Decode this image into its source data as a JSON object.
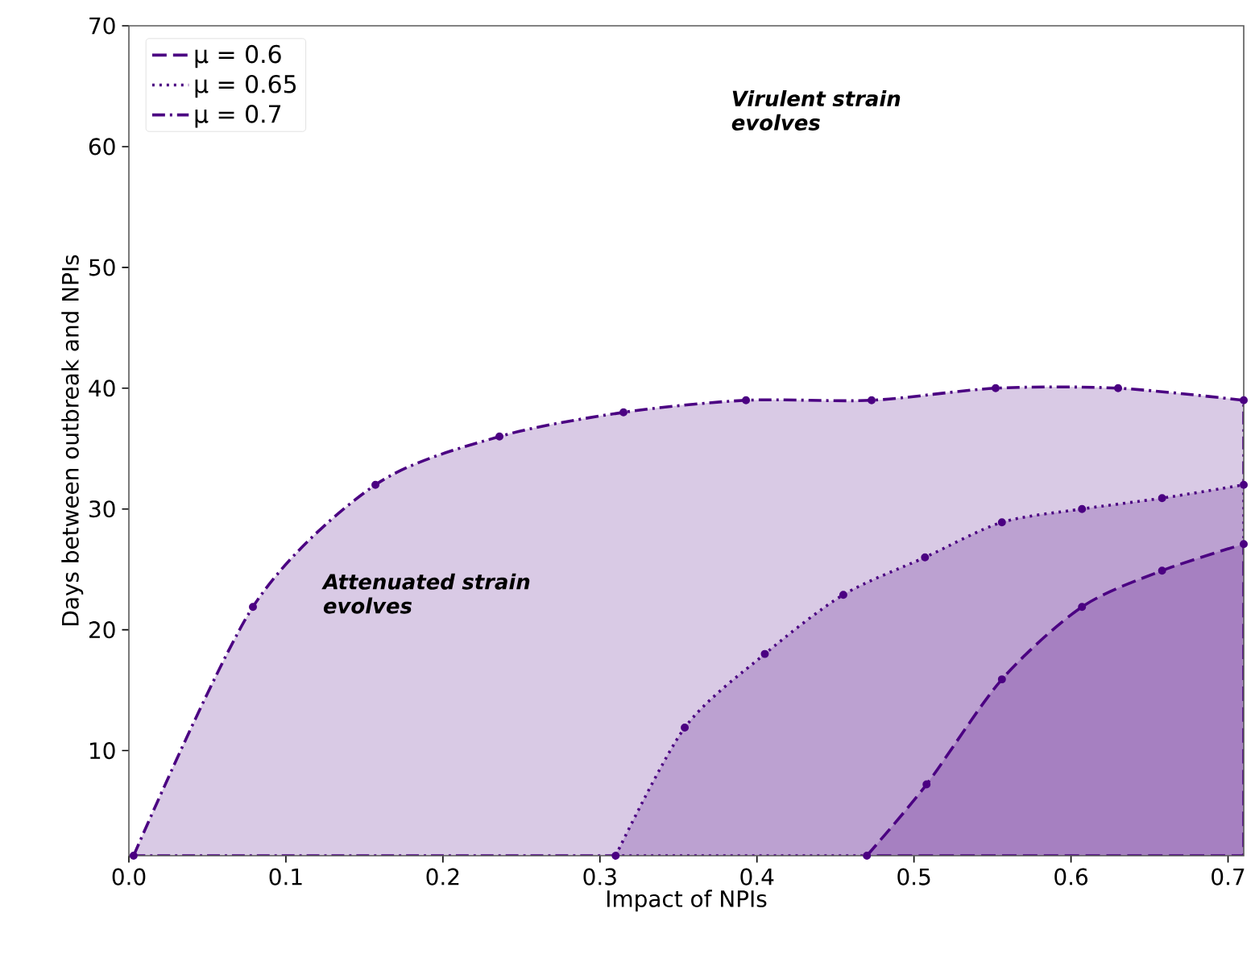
{
  "chart_data": {
    "type": "area",
    "xlabel": "Impact of NPIs",
    "ylabel": "Days between outbreak and NPIs",
    "annotations": [
      "Virulent strain evolves",
      "Attenuated strain evolves"
    ],
    "series": [
      {
        "name": "μ = 0.6",
        "color": "#a680c1",
        "line_style": "dashed",
        "x": [
          0.47,
          0.508,
          0.556,
          0.607,
          0.658,
          0.71
        ],
        "values": [
          1.3,
          7.2,
          15.9,
          21.9,
          24.9,
          27.1
        ]
      },
      {
        "name": "μ = 0.65",
        "color": "#bca1d1",
        "line_style": "dotted",
        "x": [
          0.31,
          0.354,
          0.405,
          0.455,
          0.507,
          0.556,
          0.607,
          0.658,
          0.71
        ],
        "values": [
          1.3,
          11.9,
          18,
          22.9,
          26,
          28.9,
          30,
          30.9,
          32
        ]
      },
      {
        "name": "μ = 0.7",
        "color": "#d9cae5",
        "line_style": "dashdot",
        "x": [
          0.003,
          0.079,
          0.157,
          0.236,
          0.315,
          0.393,
          0.473,
          0.552,
          0.63,
          0.71
        ],
        "values": [
          1.3,
          21.9,
          32,
          36,
          38,
          39,
          39,
          40,
          40,
          39
        ]
      }
    ],
    "xlim": [
      0,
      0.71
    ],
    "ylim": [
      1.3,
      70
    ],
    "xticks": [
      {
        "value": 0,
        "label": "0.0"
      },
      {
        "value": 0.1,
        "label": "0.1"
      },
      {
        "value": 0.2,
        "label": "0.2"
      },
      {
        "value": 0.3,
        "label": "0.3"
      },
      {
        "value": 0.4,
        "label": "0.4"
      },
      {
        "value": 0.5,
        "label": "0.5"
      },
      {
        "value": 0.6,
        "label": "0.6"
      },
      {
        "value": 0.7,
        "label": "0.7"
      }
    ],
    "yticks": [
      10,
      20,
      30,
      40,
      50,
      60,
      70
    ],
    "legend": "top left",
    "marker": "circle",
    "grid": false
  }
}
